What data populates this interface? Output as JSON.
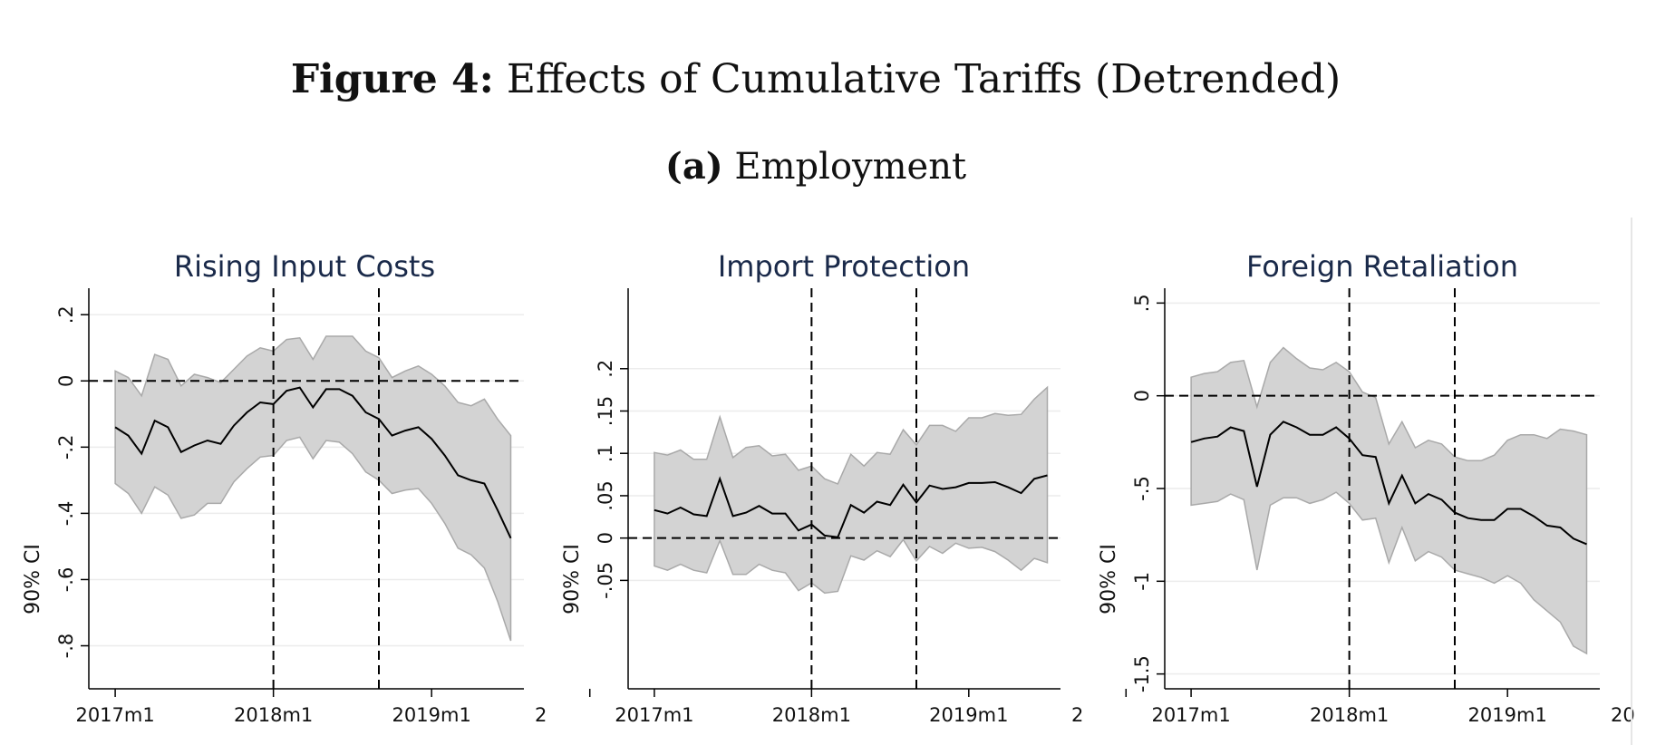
{
  "figure": {
    "label": "Figure 4:",
    "title": "Effects of Cumulative Tariffs (Detrended)",
    "sublabel": "(a)",
    "subtitle": "Employment"
  },
  "colors": {
    "band": "#d3d3d3",
    "band_edge": "#a9a9a9",
    "line": "#000000",
    "grid": "#ececec",
    "title": "#1a2a4a"
  },
  "chart_data": [
    {
      "type": "area",
      "title": "Rising Input Costs",
      "ylabel": "90% CI",
      "xlabel": "",
      "x_ticks": [
        "2017m1",
        "2018m1",
        "2019m1",
        "2"
      ],
      "y_ticks": [
        ".2",
        "0",
        "-.2",
        "-.4",
        "-.6",
        "-.8"
      ],
      "x_range": [
        -1,
        32
      ],
      "ylim": [
        -0.93,
        0.28
      ],
      "event_lines": [
        13,
        21
      ],
      "zero_line": true,
      "x": [
        1,
        2,
        3,
        4,
        5,
        6,
        7,
        8,
        9,
        10,
        11,
        12,
        13,
        14,
        15,
        16,
        17,
        18,
        19,
        20,
        21,
        22,
        23,
        24,
        25,
        26,
        27,
        28,
        29,
        30,
        31
      ],
      "estimate": [
        -0.14,
        -0.165,
        -0.22,
        -0.12,
        -0.14,
        -0.215,
        -0.195,
        -0.18,
        -0.19,
        -0.135,
        -0.095,
        -0.065,
        -0.07,
        -0.03,
        -0.02,
        -0.08,
        -0.025,
        -0.025,
        -0.045,
        -0.095,
        -0.115,
        -0.165,
        -0.15,
        -0.14,
        -0.175,
        -0.225,
        -0.285,
        -0.3,
        -0.31,
        -0.39,
        -0.475
      ],
      "upper": [
        0.03,
        0.01,
        -0.045,
        0.08,
        0.065,
        -0.015,
        0.02,
        0.01,
        -0.005,
        0.035,
        0.075,
        0.1,
        0.09,
        0.125,
        0.13,
        0.065,
        0.135,
        0.135,
        0.135,
        0.09,
        0.07,
        0.01,
        0.03,
        0.045,
        0.02,
        -0.015,
        -0.065,
        -0.075,
        -0.055,
        -0.115,
        -0.165
      ],
      "lower": [
        -0.31,
        -0.34,
        -0.4,
        -0.32,
        -0.345,
        -0.415,
        -0.405,
        -0.37,
        -0.37,
        -0.305,
        -0.265,
        -0.23,
        -0.225,
        -0.18,
        -0.17,
        -0.235,
        -0.18,
        -0.185,
        -0.22,
        -0.275,
        -0.3,
        -0.34,
        -0.33,
        -0.325,
        -0.37,
        -0.43,
        -0.505,
        -0.525,
        -0.565,
        -0.665,
        -0.785
      ]
    },
    {
      "type": "area",
      "title": "Import Protection",
      "ylabel": "90% CI",
      "xlabel": "",
      "x_ticks": [
        "2017m1",
        "2018m1",
        "2019m1",
        "2"
      ],
      "y_ticks": [
        ".2",
        ".15",
        ".1",
        ".05",
        "0",
        "-.05"
      ],
      "x_range": [
        -1,
        32
      ],
      "ylim": [
        -0.178,
        0.295
      ],
      "event_lines": [
        13,
        21
      ],
      "zero_line": true,
      "x": [
        1,
        2,
        3,
        4,
        5,
        6,
        7,
        8,
        9,
        10,
        11,
        12,
        13,
        14,
        15,
        16,
        17,
        18,
        19,
        20,
        21,
        22,
        23,
        24,
        25,
        26,
        27,
        28,
        29,
        30,
        31
      ],
      "estimate": [
        0.033,
        0.029,
        0.036,
        0.028,
        0.026,
        0.07,
        0.026,
        0.03,
        0.038,
        0.029,
        0.029,
        0.009,
        0.016,
        0.003,
        0.001,
        0.039,
        0.03,
        0.043,
        0.039,
        0.063,
        0.042,
        0.062,
        0.058,
        0.06,
        0.065,
        0.065,
        0.066,
        0.06,
        0.053,
        0.07,
        0.074
      ],
      "upper": [
        0.101,
        0.098,
        0.104,
        0.093,
        0.093,
        0.143,
        0.095,
        0.107,
        0.109,
        0.097,
        0.099,
        0.08,
        0.085,
        0.07,
        0.064,
        0.099,
        0.085,
        0.101,
        0.099,
        0.128,
        0.11,
        0.133,
        0.133,
        0.126,
        0.142,
        0.142,
        0.147,
        0.145,
        0.146,
        0.164,
        0.178
      ],
      "lower": [
        -0.033,
        -0.038,
        -0.031,
        -0.038,
        -0.041,
        -0.003,
        -0.043,
        -0.043,
        -0.031,
        -0.038,
        -0.041,
        -0.062,
        -0.053,
        -0.065,
        -0.063,
        -0.021,
        -0.026,
        -0.015,
        -0.022,
        -0.002,
        -0.027,
        -0.01,
        -0.018,
        -0.006,
        -0.012,
        -0.011,
        -0.016,
        -0.026,
        -0.038,
        -0.024,
        -0.029
      ]
    },
    {
      "type": "area",
      "title": "Foreign Retaliation",
      "ylabel": "90% CI",
      "xlabel": "",
      "x_ticks": [
        "2017m1",
        "2018m1",
        "2019m1",
        "20"
      ],
      "y_ticks": [
        ".5",
        "0",
        "-.5",
        "-1",
        "-1.5"
      ],
      "x_range": [
        -1,
        32
      ],
      "ylim": [
        -1.58,
        0.58
      ],
      "event_lines": [
        13,
        21
      ],
      "zero_line": true,
      "x": [
        1,
        2,
        3,
        4,
        5,
        6,
        7,
        8,
        9,
        10,
        11,
        12,
        13,
        14,
        15,
        16,
        17,
        18,
        19,
        20,
        21,
        22,
        23,
        24,
        25,
        26,
        27,
        28,
        29,
        30,
        31
      ],
      "estimate": [
        -0.25,
        -0.23,
        -0.22,
        -0.17,
        -0.19,
        -0.49,
        -0.21,
        -0.14,
        -0.17,
        -0.21,
        -0.21,
        -0.17,
        -0.23,
        -0.32,
        -0.33,
        -0.58,
        -0.43,
        -0.58,
        -0.53,
        -0.56,
        -0.63,
        -0.66,
        -0.67,
        -0.67,
        -0.61,
        -0.61,
        -0.65,
        -0.7,
        -0.71,
        -0.77,
        -0.8
      ],
      "upper": [
        0.1,
        0.12,
        0.13,
        0.18,
        0.19,
        -0.06,
        0.18,
        0.26,
        0.2,
        0.15,
        0.14,
        0.18,
        0.13,
        0.02,
        -0.01,
        -0.26,
        -0.14,
        -0.28,
        -0.24,
        -0.26,
        -0.33,
        -0.35,
        -0.35,
        -0.32,
        -0.24,
        -0.21,
        -0.21,
        -0.23,
        -0.18,
        -0.19,
        -0.21
      ],
      "lower": [
        -0.59,
        -0.58,
        -0.57,
        -0.53,
        -0.56,
        -0.94,
        -0.59,
        -0.55,
        -0.55,
        -0.58,
        -0.56,
        -0.52,
        -0.58,
        -0.67,
        -0.66,
        -0.9,
        -0.71,
        -0.89,
        -0.84,
        -0.87,
        -0.94,
        -0.96,
        -0.98,
        -1.01,
        -0.97,
        -1.01,
        -1.1,
        -1.16,
        -1.22,
        -1.35,
        -1.39
      ]
    }
  ]
}
